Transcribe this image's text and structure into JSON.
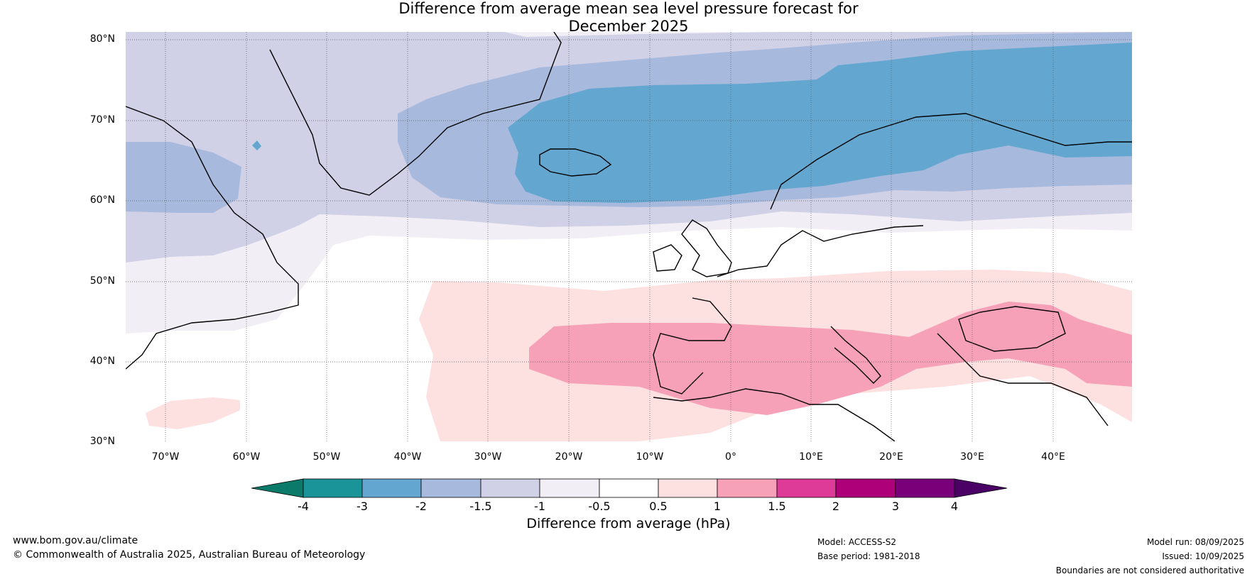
{
  "title": {
    "line1": "Difference from average mean sea level pressure forecast for",
    "line2": "December 2025"
  },
  "map": {
    "region": "North Atlantic and Europe",
    "lat_labels": [
      "80°N",
      "70°N",
      "60°N",
      "50°N",
      "40°N",
      "30°N"
    ],
    "lon_labels": [
      "70°W",
      "60°W",
      "50°W",
      "40°W",
      "30°W",
      "20°W",
      "10°W",
      "0°",
      "10°E",
      "20°E",
      "30°E",
      "40°E"
    ],
    "gridlines": true,
    "anomaly_regions": [
      {
        "class": "-2 to -3",
        "location": "Iceland, Norwegian Sea, Scandinavia, Barents Sea"
      },
      {
        "class": "-1.5 to -2",
        "location": "Denmark Strait, northern Scandinavia, Finland"
      },
      {
        "class": "-1 to -1.5",
        "location": "Greenland, Baffin Bay, Labrador"
      },
      {
        "class": "-0.5 to -1",
        "location": "Newfoundland, North Atlantic near 55°N, Baltic"
      },
      {
        "class": "-0.5 to 0.5",
        "location": "Central North Atlantic, British Isles, Central Europe"
      },
      {
        "class": "0.5 to 1",
        "location": "Subtropical Atlantic, Western Europe, Sahara"
      },
      {
        "class": "1 to 1.5",
        "location": "Iberia, Mediterranean, Italy, Balkans, Black Sea, Turkey"
      }
    ]
  },
  "colorbar": {
    "title": "Difference from average (hPa)",
    "labels": [
      "-4",
      "-3",
      "-2",
      "-1.5",
      "-1",
      "-0.5",
      "0.5",
      "1",
      "1.5",
      "2",
      "3",
      "4"
    ],
    "colors": [
      "#0c7a6a",
      "#1b9499",
      "#63a7d0",
      "#a7b9dc",
      "#d0d0e6",
      "#f2eef5",
      "#ffffff",
      "#fde0e0",
      "#f7a1b9",
      "#de3a98",
      "#ae0079",
      "#7a007a",
      "#4b0066"
    ]
  },
  "footer": {
    "url": "www.bom.gov.au/climate",
    "copyright": "© Commonwealth of Australia 2025, Australian Bureau of Meteorology",
    "model": "Model: ACCESS-S2",
    "base_period": "Base period: 1981-2018",
    "model_run": "Model run: 08/09/2025",
    "issued": "Issued: 10/09/2025",
    "disclaimer": "Boundaries are not considered authoritative"
  }
}
